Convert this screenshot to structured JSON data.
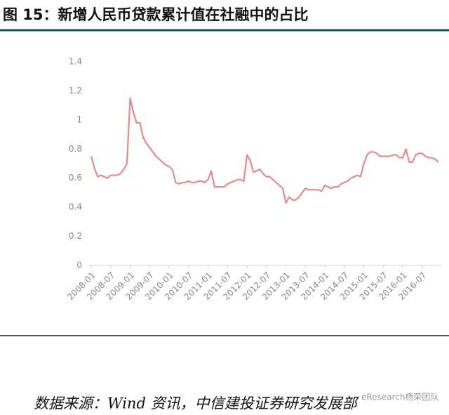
{
  "chart_data": {
    "type": "line",
    "title": "图 15：新增人民币贷款累计值在社融中的占比",
    "source": "数据来源：Wind 资讯，中信建投证券研究发展部",
    "watermark": "eResearch杨荣团队",
    "categories": [
      "2008-01",
      null,
      null,
      null,
      null,
      null,
      "2008-07",
      null,
      null,
      null,
      null,
      null,
      "2009-01",
      null,
      null,
      null,
      null,
      null,
      "2009-07",
      null,
      null,
      null,
      null,
      null,
      "2010-01",
      null,
      null,
      null,
      null,
      null,
      "2010-07",
      null,
      null,
      null,
      null,
      null,
      "2011-01",
      null,
      null,
      null,
      null,
      null,
      "2011-07",
      null,
      null,
      null,
      null,
      null,
      "2012-01",
      null,
      null,
      null,
      null,
      null,
      "2012-07",
      null,
      null,
      null,
      null,
      null,
      "2013-01",
      null,
      null,
      null,
      null,
      null,
      "2013-07",
      null,
      null,
      null,
      null,
      null,
      "2014-01",
      null,
      null,
      null,
      null,
      null,
      "2014-07",
      null,
      null,
      null,
      null,
      null,
      "2015-01",
      null,
      null,
      null,
      null,
      null,
      "2015-07",
      null,
      null,
      null,
      null,
      null,
      "2016-01",
      null,
      null,
      null,
      null,
      null,
      "2016-07",
      null,
      null,
      null,
      null,
      null
    ],
    "series": [
      {
        "color": "#e58a8c",
        "values": [
          0.75,
          0.67,
          0.61,
          0.62,
          0.61,
          0.6,
          0.62,
          0.62,
          0.62,
          0.63,
          0.66,
          0.7,
          1.15,
          1.05,
          0.98,
          0.98,
          0.88,
          0.84,
          0.81,
          0.78,
          0.75,
          0.73,
          0.71,
          0.69,
          0.68,
          0.66,
          0.57,
          0.56,
          0.57,
          0.57,
          0.58,
          0.57,
          0.57,
          0.58,
          0.58,
          0.57,
          0.59,
          0.65,
          0.54,
          0.54,
          0.54,
          0.54,
          0.56,
          0.57,
          0.58,
          0.59,
          0.59,
          0.58,
          0.76,
          0.72,
          0.64,
          0.65,
          0.66,
          0.63,
          0.61,
          0.61,
          0.59,
          0.57,
          0.55,
          0.53,
          0.43,
          0.47,
          0.45,
          0.45,
          0.47,
          0.5,
          0.53,
          0.52,
          0.52,
          0.52,
          0.52,
          0.51,
          0.55,
          0.54,
          0.53,
          0.54,
          0.54,
          0.56,
          0.57,
          0.58,
          0.6,
          0.61,
          0.62,
          0.61,
          0.7,
          0.76,
          0.78,
          0.78,
          0.77,
          0.75,
          0.75,
          0.75,
          0.75,
          0.76,
          0.76,
          0.74,
          0.74,
          0.8,
          0.71,
          0.71,
          0.76,
          0.77,
          0.77,
          0.75,
          0.74,
          0.74,
          0.73,
          0.71
        ]
      }
    ],
    "ylim": [
      0,
      1.4
    ],
    "yticks": [
      0,
      0.2,
      0.4,
      0.6,
      0.8,
      1,
      1.2,
      1.4
    ],
    "grid": false
  }
}
